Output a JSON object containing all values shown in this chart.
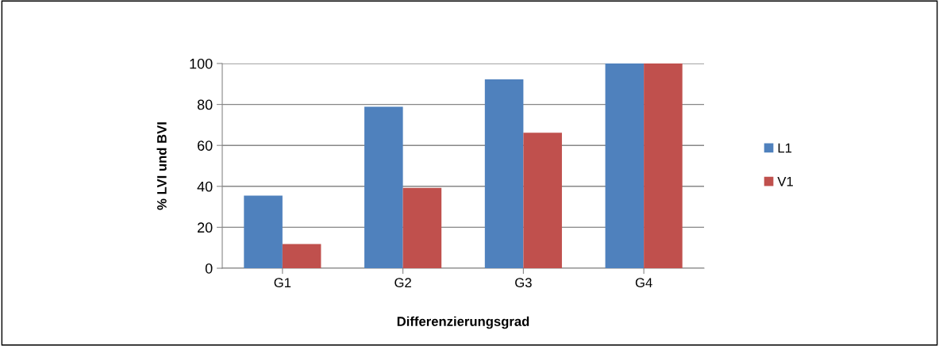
{
  "chart_data": {
    "type": "bar",
    "xlabel": "Differenzierungsgrad",
    "ylabel": "% LVI und BVI",
    "categories": [
      "G1",
      "G2",
      "G3",
      "G4"
    ],
    "series": [
      {
        "name": "L1",
        "color": "#4f81bd",
        "values": [
          35.5,
          78.9,
          92.2,
          100
        ]
      },
      {
        "name": "V1",
        "color": "#c0504d",
        "values": [
          11.8,
          39.2,
          66.2,
          100
        ]
      }
    ],
    "ylim": [
      0,
      100
    ],
    "yticks": [
      0,
      20,
      40,
      60,
      80,
      100
    ],
    "grid": "y",
    "legend": "right"
  }
}
